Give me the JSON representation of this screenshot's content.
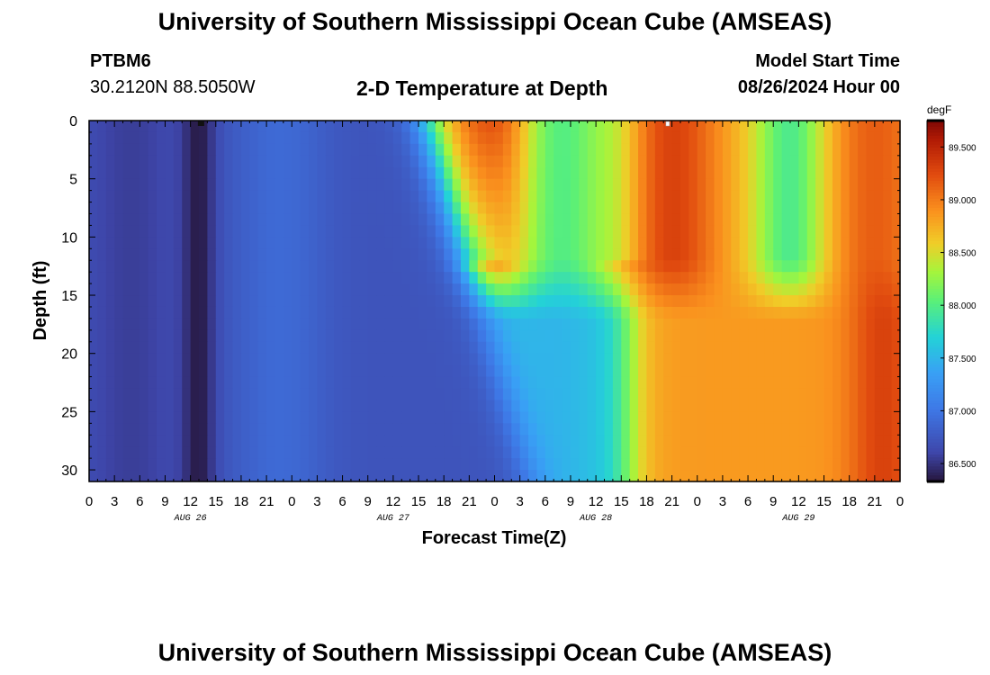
{
  "header": {
    "title": "University of Southern Mississippi Ocean Cube (AMSEAS)",
    "station": "PTBM6",
    "coords": "30.2120N  88.5050W",
    "subtitle": "2-D Temperature at Depth",
    "model_start_label": "Model Start Time",
    "model_start_value": "08/26/2024 Hour 00"
  },
  "footer": {
    "title": "University of Southern Mississippi Ocean Cube (AMSEAS)"
  },
  "chart_data": {
    "type": "heatmap",
    "title": "2-D Temperature at Depth",
    "xlabel": "Forecast Time(Z)",
    "ylabel": "Depth (ft)",
    "x_units": "hours since 08/26/2024 00Z",
    "xlim": [
      0,
      96
    ],
    "ylim": [
      0,
      31
    ],
    "x_ticks": [
      "0",
      "3",
      "6",
      "9",
      "12",
      "15",
      "18",
      "21",
      "0",
      "3",
      "6",
      "9",
      "12",
      "15",
      "18",
      "21",
      "0",
      "3",
      "6",
      "9",
      "12",
      "15",
      "18",
      "21",
      "0",
      "3",
      "6",
      "9",
      "12",
      "15",
      "18",
      "21",
      "0"
    ],
    "date_labels": [
      "AUG 26",
      "AUG 27",
      "AUG 28",
      "AUG 29"
    ],
    "y_ticks": [
      "0",
      "5",
      "10",
      "15",
      "20",
      "25",
      "30"
    ],
    "colorbar": {
      "units": "degF",
      "range": [
        86.33,
        89.75
      ],
      "ticks": [
        "86.500",
        "87.000",
        "87.500",
        "88.000",
        "88.500",
        "89.000",
        "89.500"
      ]
    },
    "grid": false,
    "legend": "colorbar-right"
  }
}
